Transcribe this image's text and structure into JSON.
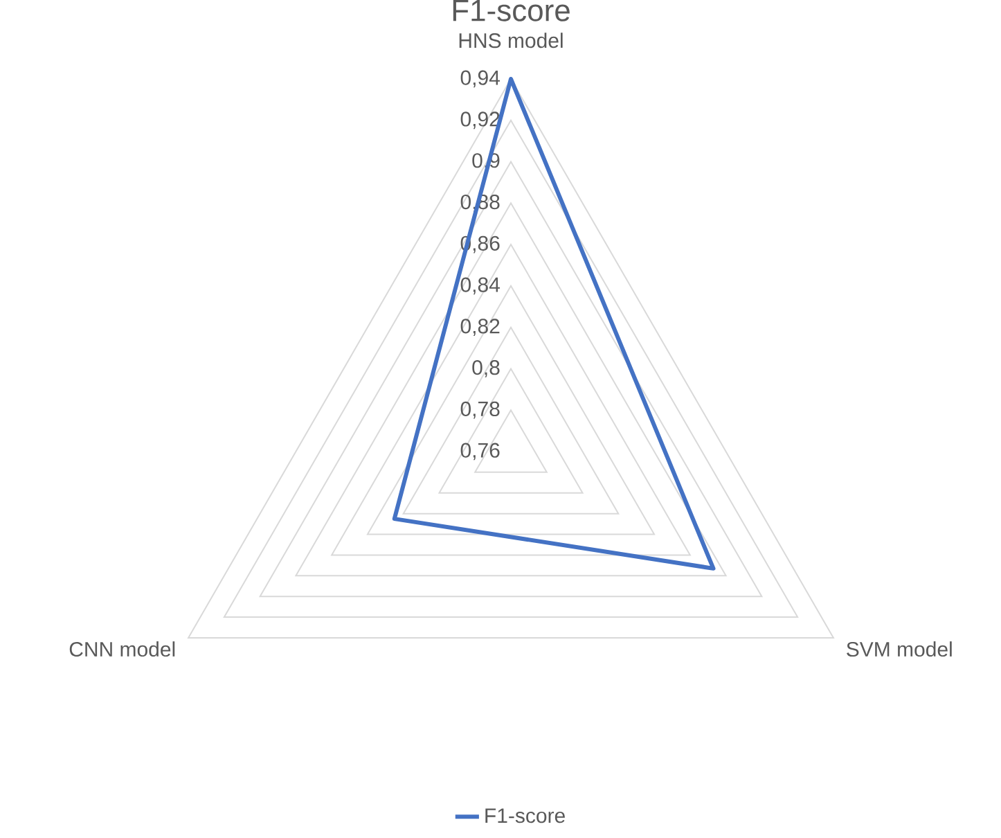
{
  "chart_data": {
    "type": "radar",
    "title": "F1-score",
    "categories": [
      "HNS model",
      "SVM model",
      "CNN model"
    ],
    "series": [
      {
        "name": "F1-score",
        "color": "#4472c4",
        "values": [
          0.94,
          0.873,
          0.825
        ]
      }
    ],
    "ylim": [
      0.76,
      0.94
    ],
    "yticks": [
      {
        "value": 0.76,
        "label": "0,76"
      },
      {
        "value": 0.78,
        "label": "0,78"
      },
      {
        "value": 0.8,
        "label": "0,8"
      },
      {
        "value": 0.82,
        "label": "0,82"
      },
      {
        "value": 0.84,
        "label": "0,84"
      },
      {
        "value": 0.86,
        "label": "0,86"
      },
      {
        "value": 0.88,
        "label": "0,88"
      },
      {
        "value": 0.9,
        "label": "0,9"
      },
      {
        "value": 0.92,
        "label": "0,92"
      },
      {
        "value": 0.94,
        "label": "0,94"
      }
    ],
    "grid": true,
    "legend": "bottom"
  }
}
